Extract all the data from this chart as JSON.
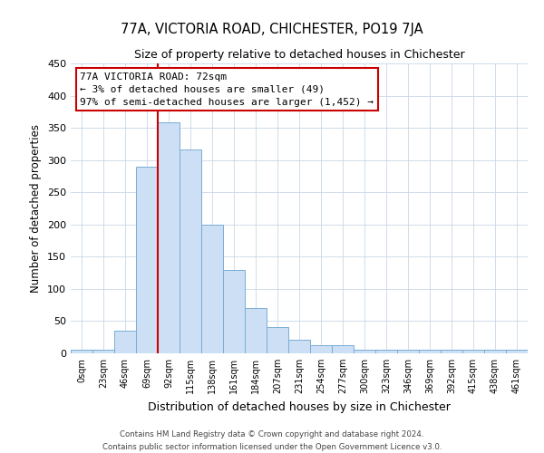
{
  "title": "77A, VICTORIA ROAD, CHICHESTER, PO19 7JA",
  "subtitle": "Size of property relative to detached houses in Chichester",
  "xlabel": "Distribution of detached houses by size in Chichester",
  "ylabel": "Number of detached properties",
  "bar_labels": [
    "0sqm",
    "23sqm",
    "46sqm",
    "69sqm",
    "92sqm",
    "115sqm",
    "138sqm",
    "161sqm",
    "184sqm",
    "207sqm",
    "231sqm",
    "254sqm",
    "277sqm",
    "300sqm",
    "323sqm",
    "346sqm",
    "369sqm",
    "392sqm",
    "415sqm",
    "438sqm",
    "461sqm"
  ],
  "bar_values": [
    5,
    5,
    35,
    290,
    358,
    317,
    199,
    129,
    70,
    41,
    21,
    13,
    13,
    5,
    5,
    5,
    5,
    5,
    5,
    5,
    5
  ],
  "bar_color": "#ccdff5",
  "bar_edge_color": "#7aadd4",
  "background_color": "#ffffff",
  "grid_color": "#c8d8e8",
  "ylim": [
    0,
    450
  ],
  "yticks": [
    0,
    50,
    100,
    150,
    200,
    250,
    300,
    350,
    400,
    450
  ],
  "property_line_color": "#cc0000",
  "annotation_title": "77A VICTORIA ROAD: 72sqm",
  "annotation_line1": "← 3% of detached houses are smaller (49)",
  "annotation_line2": "97% of semi-detached houses are larger (1,452) →",
  "annotation_box_color": "#ffffff",
  "annotation_box_edge_color": "#cc0000",
  "footer_line1": "Contains HM Land Registry data © Crown copyright and database right 2024.",
  "footer_line2": "Contains public sector information licensed under the Open Government Licence v3.0."
}
